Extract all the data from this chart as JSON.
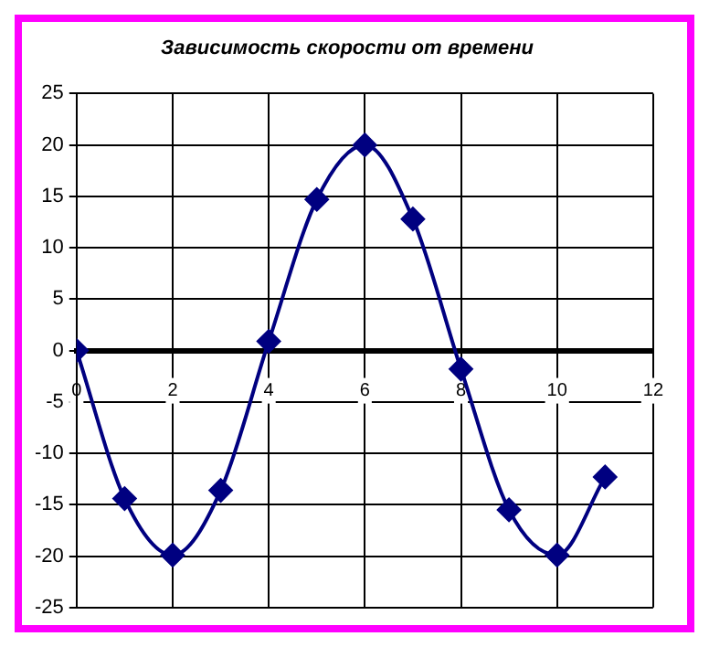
{
  "chart_data": {
    "type": "line",
    "title": "Зависимость скорости от времени",
    "x": [
      0,
      1,
      2,
      3,
      4,
      5,
      6,
      7,
      8,
      9,
      10,
      11
    ],
    "series": [
      {
        "color": "#000080",
        "values": [
          0,
          -14.4,
          -19.9,
          -13.6,
          0.9,
          14.7,
          20,
          12.8,
          -1.8,
          -15.5,
          -19.9,
          -12.3
        ]
      }
    ],
    "xlim": [
      0,
      12
    ],
    "xticks": [
      0,
      2,
      4,
      6,
      8,
      10,
      12
    ],
    "ylim": [
      -25,
      25
    ],
    "yticks": [
      -25,
      -20,
      -15,
      -10,
      -5,
      0,
      5,
      10,
      15,
      20,
      25
    ],
    "grid": true,
    "legend": false,
    "marker": "diamond",
    "line_style": "solid"
  }
}
